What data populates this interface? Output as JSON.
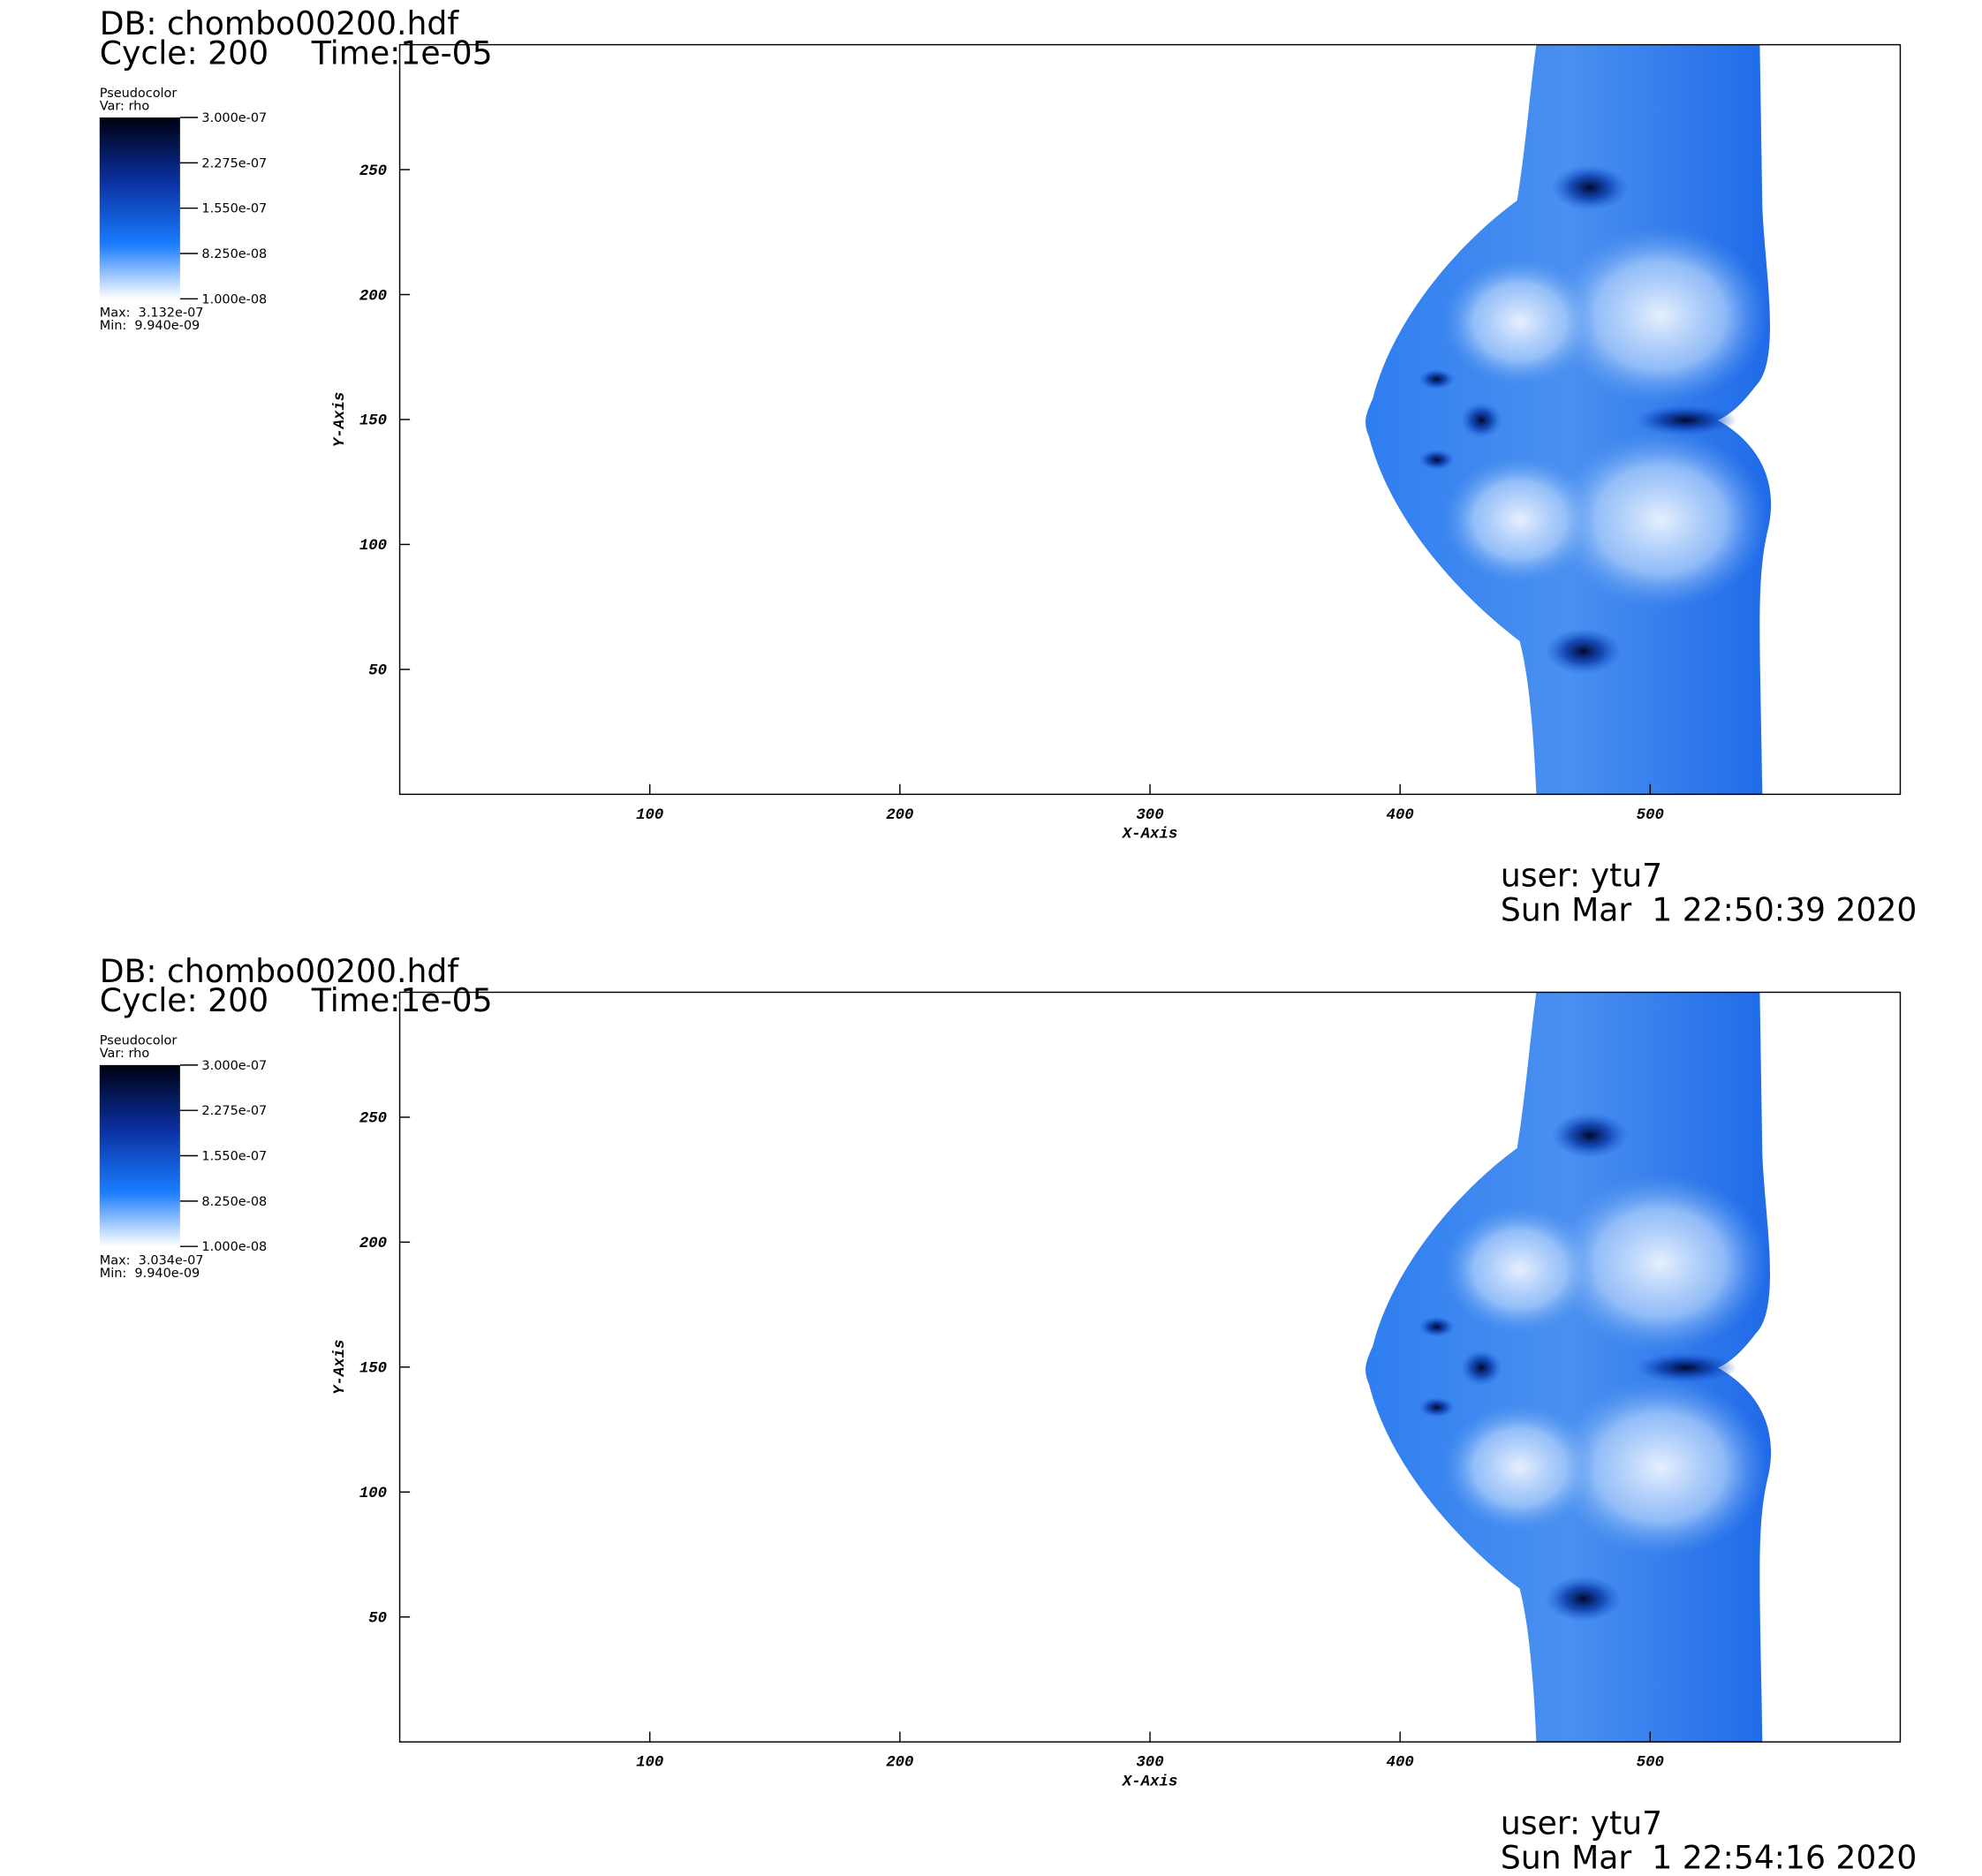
{
  "panels": [
    {
      "db": "DB: chombo00200.hdf",
      "cycle": "Cycle: 200",
      "time": "Time:1e-05",
      "legend": {
        "title": "Pseudocolor",
        "var": "Var: rho",
        "ticks": [
          {
            "value": 3e-07,
            "label": "3.000e-07"
          },
          {
            "value": 2.275e-07,
            "label": "2.275e-07"
          },
          {
            "value": 1.55e-07,
            "label": "1.550e-07"
          },
          {
            "value": 8.25e-08,
            "label": "8.250e-08"
          },
          {
            "value": 1e-08,
            "label": "1.000e-08"
          }
        ],
        "max": "Max:  3.132e-07",
        "min": "Min:  9.940e-09"
      },
      "x_axis": {
        "label": "X-Axis",
        "lim": [
          0,
          600
        ],
        "ticks": [
          100,
          200,
          300,
          400,
          500
        ]
      },
      "y_axis": {
        "label": "Y-Axis",
        "lim": [
          0,
          300
        ],
        "ticks": [
          50,
          100,
          150,
          200,
          250
        ]
      },
      "user": "user: ytu7",
      "date": "Sun Mar  1 22:50:39 2020"
    },
    {
      "db": "DB: chombo00200.hdf",
      "cycle": "Cycle: 200",
      "time": "Time:1e-05",
      "legend": {
        "title": "Pseudocolor",
        "var": "Var: rho",
        "ticks": [
          {
            "value": 3e-07,
            "label": "3.000e-07"
          },
          {
            "value": 2.275e-07,
            "label": "2.275e-07"
          },
          {
            "value": 1.55e-07,
            "label": "1.550e-07"
          },
          {
            "value": 8.25e-08,
            "label": "8.250e-08"
          },
          {
            "value": 1e-08,
            "label": "1.000e-08"
          }
        ],
        "max": "Max:  3.034e-07",
        "min": "Min:  9.940e-09"
      },
      "x_axis": {
        "label": "X-Axis",
        "lim": [
          0,
          600
        ],
        "ticks": [
          100,
          200,
          300,
          400,
          500
        ]
      },
      "y_axis": {
        "label": "Y-Axis",
        "lim": [
          0,
          300
        ],
        "ticks": [
          50,
          100,
          150,
          200,
          250
        ]
      },
      "user": "user: ytu7",
      "date": "Sun Mar  1 22:54:16 2020"
    }
  ]
}
